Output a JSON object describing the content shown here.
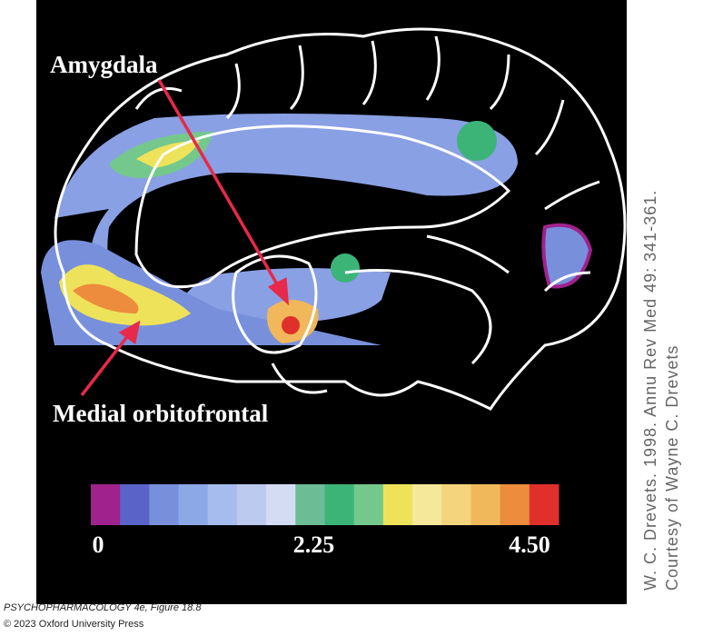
{
  "figure": {
    "labels": {
      "amygdala": "Amygdala",
      "orbitofrontal": "Medial orbitofrontal"
    },
    "colorbar": {
      "colors": [
        "#a0228c",
        "#5a64c8",
        "#7890dc",
        "#8ca8e6",
        "#a6bcee",
        "#bccaf0",
        "#d4dcf4",
        "#6cbc96",
        "#3cb478",
        "#74c88c",
        "#eee25a",
        "#f6e89a",
        "#f4d47c",
        "#f0b85a",
        "#ec8c3c",
        "#e0302c"
      ],
      "lim": [
        0,
        4.5
      ],
      "ticks": [
        0,
        2.25,
        {
          "value": 4.5,
          "label": "4.50"
        }
      ]
    },
    "credit": [
      "W. C. Drevets. 1998. Annu Rev Med 49: 341-361.",
      "Courtesy of Wayne C. Drevets"
    ],
    "caption": [
      "PSYCHOPHARMACOLOGY 4e, Figure 18.8",
      "© 2023 Oxford University Press"
    ]
  }
}
